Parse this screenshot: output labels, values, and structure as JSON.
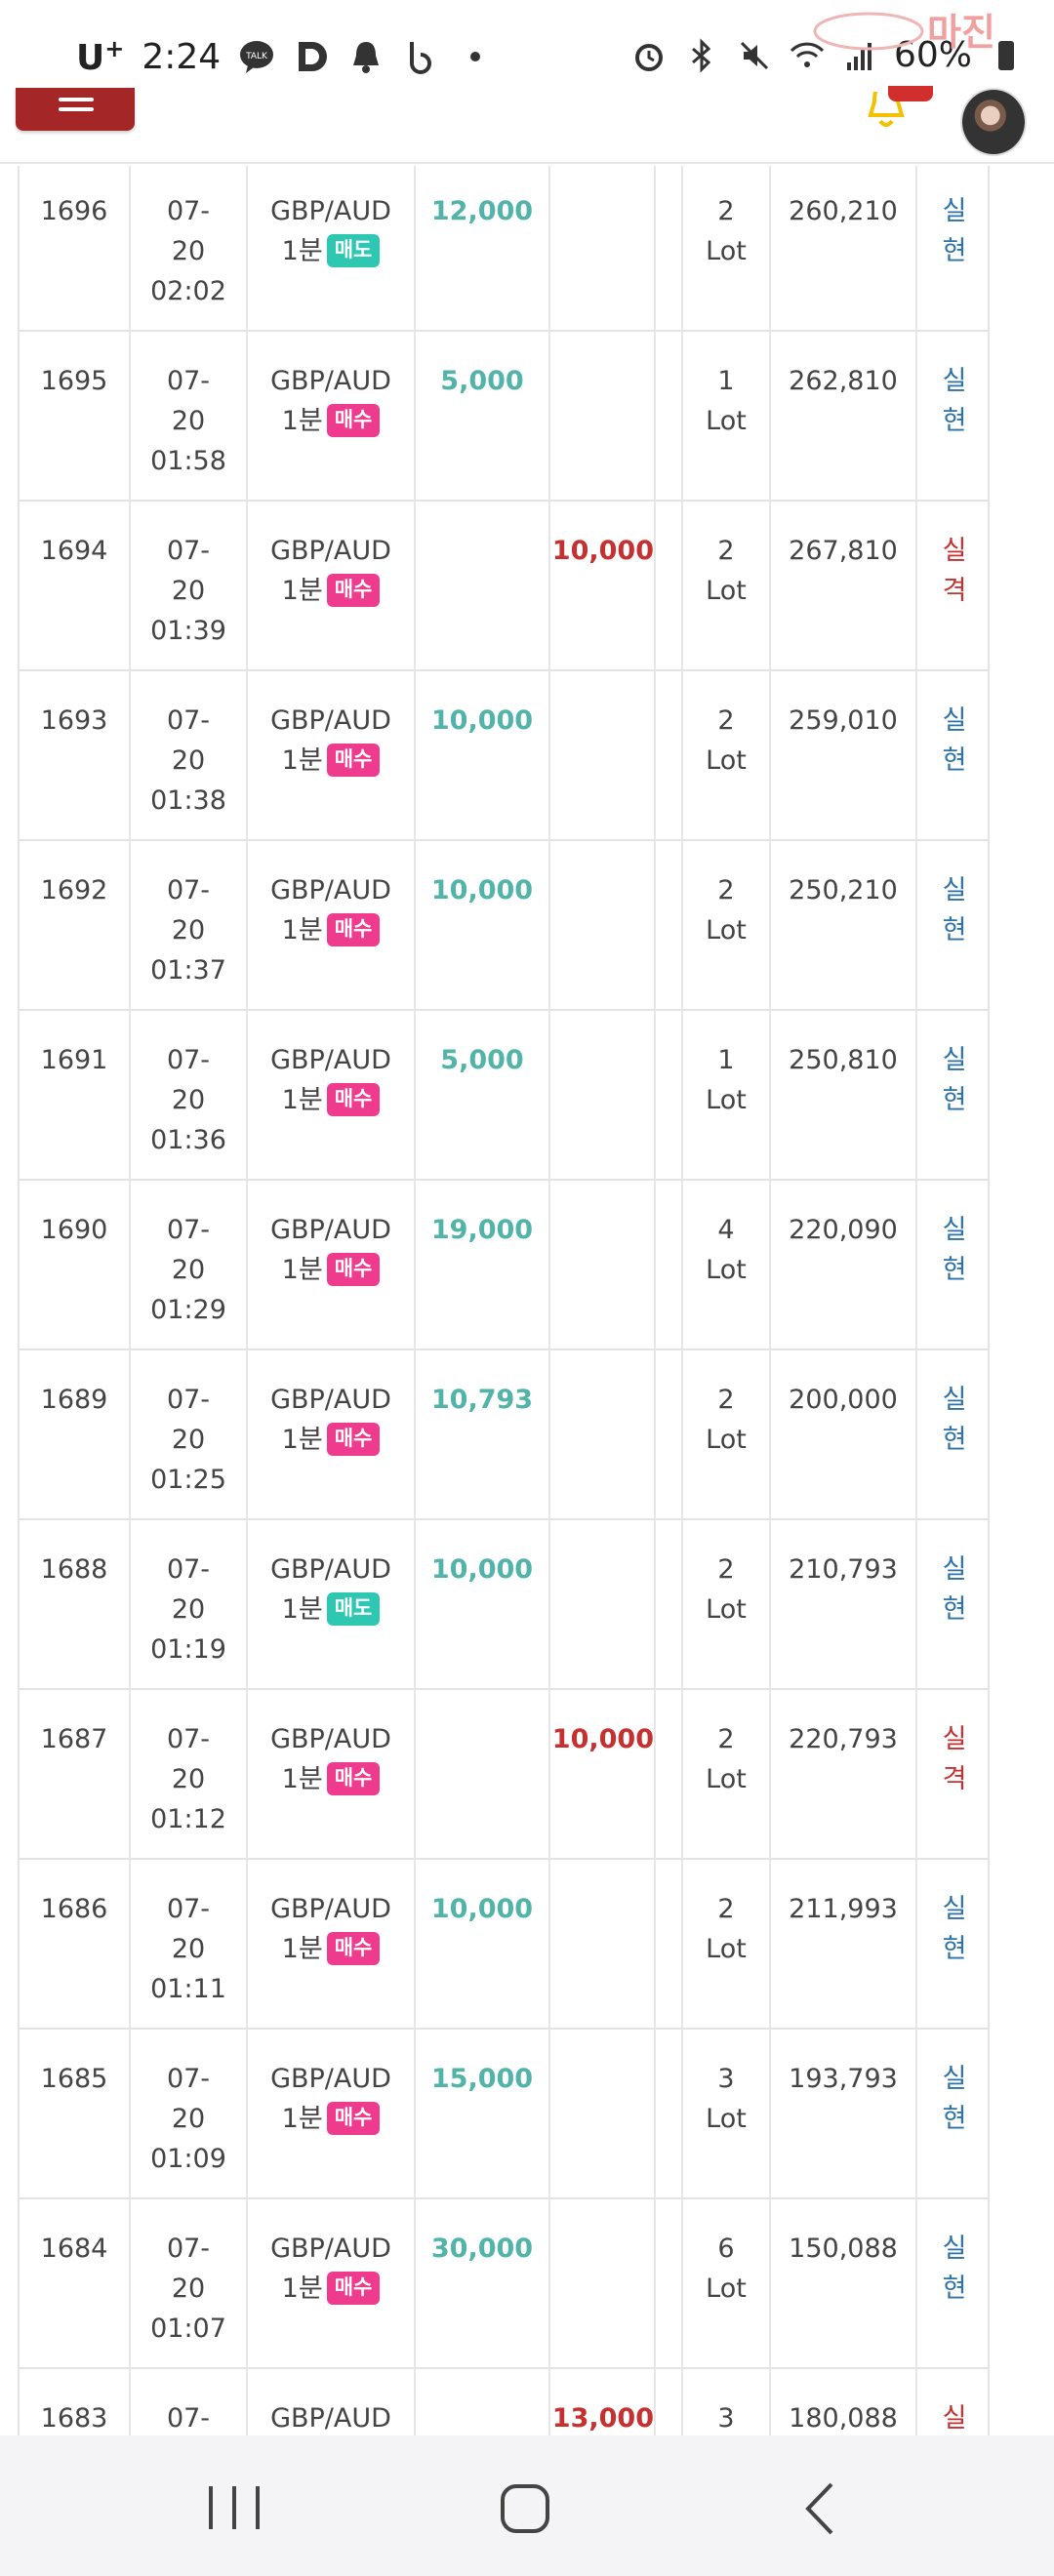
{
  "status_bar": {
    "carrier": "U",
    "carrier_sup": "+",
    "time": "2:24",
    "battery": "60%",
    "watermark_text": "마진"
  },
  "header": {
    "menu_icon": "hamburger-menu-icon",
    "bell_icon": "bell-icon",
    "avatar": "user-avatar"
  },
  "colors": {
    "accent_red": "#a52626",
    "win_teal": "#52b4a8",
    "loss_red": "#c53030",
    "buy_badge": "#ee3b8e",
    "sell_badge": "#2ec8b2",
    "result_blue": "#2d72a8"
  },
  "rows": [
    {
      "no": "1696",
      "date": "07-",
      "date2": "20",
      "time": "02:02",
      "symbol": "GBP/AUD",
      "period": "1분",
      "side": "매도",
      "side_type": "sell",
      "win": "12,000",
      "loss": "",
      "lot": "2",
      "lot_unit": "Lot",
      "balance": "260,210",
      "res1": "실",
      "res2": "현",
      "res_type": "win"
    },
    {
      "no": "1695",
      "date": "07-",
      "date2": "20",
      "time": "01:58",
      "symbol": "GBP/AUD",
      "period": "1분",
      "side": "매수",
      "side_type": "buy",
      "win": "5,000",
      "loss": "",
      "lot": "1",
      "lot_unit": "Lot",
      "balance": "262,810",
      "res1": "실",
      "res2": "현",
      "res_type": "win"
    },
    {
      "no": "1694",
      "date": "07-",
      "date2": "20",
      "time": "01:39",
      "symbol": "GBP/AUD",
      "period": "1분",
      "side": "매수",
      "side_type": "buy",
      "win": "",
      "loss": "10,000",
      "lot": "2",
      "lot_unit": "Lot",
      "balance": "267,810",
      "res1": "실",
      "res2": "격",
      "res_type": "loss"
    },
    {
      "no": "1693",
      "date": "07-",
      "date2": "20",
      "time": "01:38",
      "symbol": "GBP/AUD",
      "period": "1분",
      "side": "매수",
      "side_type": "buy",
      "win": "10,000",
      "loss": "",
      "lot": "2",
      "lot_unit": "Lot",
      "balance": "259,010",
      "res1": "실",
      "res2": "현",
      "res_type": "win"
    },
    {
      "no": "1692",
      "date": "07-",
      "date2": "20",
      "time": "01:37",
      "symbol": "GBP/AUD",
      "period": "1분",
      "side": "매수",
      "side_type": "buy",
      "win": "10,000",
      "loss": "",
      "lot": "2",
      "lot_unit": "Lot",
      "balance": "250,210",
      "res1": "실",
      "res2": "현",
      "res_type": "win"
    },
    {
      "no": "1691",
      "date": "07-",
      "date2": "20",
      "time": "01:36",
      "symbol": "GBP/AUD",
      "period": "1분",
      "side": "매수",
      "side_type": "buy",
      "win": "5,000",
      "loss": "",
      "lot": "1",
      "lot_unit": "Lot",
      "balance": "250,810",
      "res1": "실",
      "res2": "현",
      "res_type": "win"
    },
    {
      "no": "1690",
      "date": "07-",
      "date2": "20",
      "time": "01:29",
      "symbol": "GBP/AUD",
      "period": "1분",
      "side": "매수",
      "side_type": "buy",
      "win": "19,000",
      "loss": "",
      "lot": "4",
      "lot_unit": "Lot",
      "balance": "220,090",
      "res1": "실",
      "res2": "현",
      "res_type": "win"
    },
    {
      "no": "1689",
      "date": "07-",
      "date2": "20",
      "time": "01:25",
      "symbol": "GBP/AUD",
      "period": "1분",
      "side": "매수",
      "side_type": "buy",
      "win": "10,793",
      "loss": "",
      "lot": "2",
      "lot_unit": "Lot",
      "balance": "200,000",
      "res1": "실",
      "res2": "현",
      "res_type": "win"
    },
    {
      "no": "1688",
      "date": "07-",
      "date2": "20",
      "time": "01:19",
      "symbol": "GBP/AUD",
      "period": "1분",
      "side": "매도",
      "side_type": "sell",
      "win": "10,000",
      "loss": "",
      "lot": "2",
      "lot_unit": "Lot",
      "balance": "210,793",
      "res1": "실",
      "res2": "현",
      "res_type": "win"
    },
    {
      "no": "1687",
      "date": "07-",
      "date2": "20",
      "time": "01:12",
      "symbol": "GBP/AUD",
      "period": "1분",
      "side": "매수",
      "side_type": "buy",
      "win": "",
      "loss": "10,000",
      "lot": "2",
      "lot_unit": "Lot",
      "balance": "220,793",
      "res1": "실",
      "res2": "격",
      "res_type": "loss"
    },
    {
      "no": "1686",
      "date": "07-",
      "date2": "20",
      "time": "01:11",
      "symbol": "GBP/AUD",
      "period": "1분",
      "side": "매수",
      "side_type": "buy",
      "win": "10,000",
      "loss": "",
      "lot": "2",
      "lot_unit": "Lot",
      "balance": "211,993",
      "res1": "실",
      "res2": "현",
      "res_type": "win"
    },
    {
      "no": "1685",
      "date": "07-",
      "date2": "20",
      "time": "01:09",
      "symbol": "GBP/AUD",
      "period": "1분",
      "side": "매수",
      "side_type": "buy",
      "win": "15,000",
      "loss": "",
      "lot": "3",
      "lot_unit": "Lot",
      "balance": "193,793",
      "res1": "실",
      "res2": "현",
      "res_type": "win"
    },
    {
      "no": "1684",
      "date": "07-",
      "date2": "20",
      "time": "01:07",
      "symbol": "GBP/AUD",
      "period": "1분",
      "side": "매수",
      "side_type": "buy",
      "win": "30,000",
      "loss": "",
      "lot": "6",
      "lot_unit": "Lot",
      "balance": "150,088",
      "res1": "실",
      "res2": "현",
      "res_type": "win"
    },
    {
      "no": "1683",
      "date": "07-",
      "date2": "",
      "time": "",
      "symbol": "GBP/AUD",
      "period": "",
      "side": "",
      "side_type": "",
      "win": "",
      "loss": "13,000",
      "lot": "3",
      "lot_unit": "",
      "balance": "180,088",
      "res1": "실",
      "res2": "",
      "res_type": "loss"
    }
  ],
  "nav": {
    "recent_icon": "recent-apps-icon",
    "home_icon": "home-icon",
    "back_icon": "back-icon"
  }
}
